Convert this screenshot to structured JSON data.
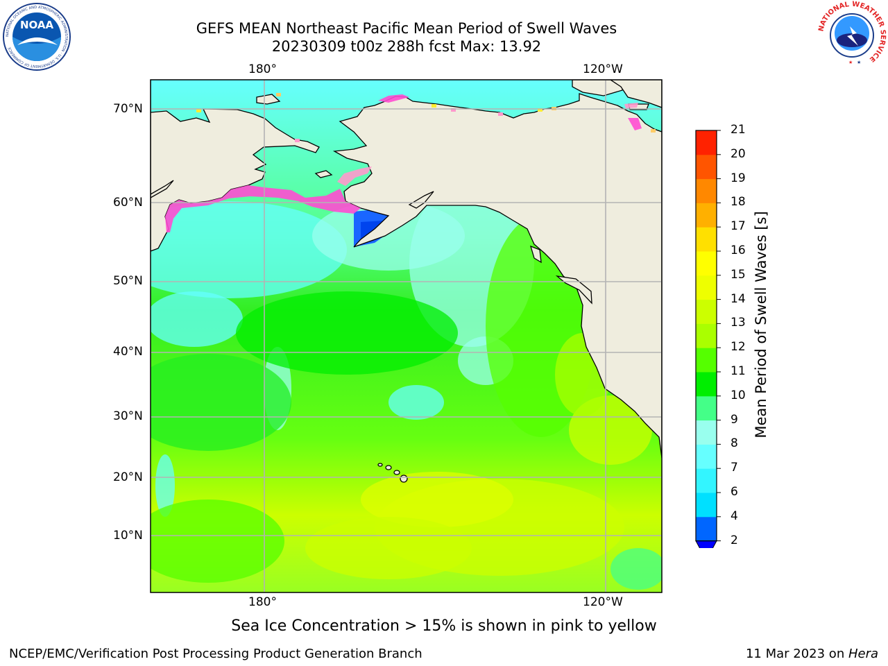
{
  "title": {
    "line1": "GEFS MEAN Northeast Pacific Mean Period of Swell Waves",
    "line2": "20230309 t00z 288h fcst   Max: 13.92"
  },
  "logos": {
    "noaa": {
      "text": "NOAA",
      "ring_text": "NATIONAL OCEANIC AND ATMOSPHERIC ADMINISTRATION · U.S. DEPARTMENT OF COMMERCE"
    },
    "nws": {
      "ring_text": "NATIONAL WEATHER SERVICE"
    }
  },
  "map": {
    "lon_labels_top": [
      "180°",
      "120°W"
    ],
    "lon_labels_bottom": [
      "180°",
      "120°W"
    ],
    "lat_labels": [
      "70°N",
      "60°N",
      "50°N",
      "40°N",
      "30°N",
      "20°N",
      "10°N"
    ],
    "colors": {
      "land": "#efedde",
      "coast": "#000000",
      "grid": "#b3b3b3",
      "ice": [
        "#ff4dd2",
        "#ff99cc",
        "#ffcc66",
        "#ffee33"
      ]
    }
  },
  "colorbar": {
    "label": "Mean Period of Swell Waves [s]",
    "ticks": [
      "2",
      "4",
      "6",
      "7",
      "8",
      "9",
      "10",
      "11",
      "12",
      "13",
      "14",
      "15",
      "16",
      "17",
      "18",
      "19",
      "20",
      "21"
    ],
    "colors": [
      "#0066ff",
      "#00e0ff",
      "#33f5ff",
      "#66ffff",
      "#99ffee",
      "#44ff88",
      "#00ee00",
      "#55ff00",
      "#aaff00",
      "#ccff00",
      "#eeff00",
      "#ffff00",
      "#ffe000",
      "#ffb000",
      "#ff8800",
      "#ff5500",
      "#ff2200"
    ],
    "under_color": "#0000ff"
  },
  "note": "Sea Ice Concentration > 15% is shown in pink to yellow",
  "footer": {
    "left": "NCEP/EMC/Verification Post Processing Product Generation Branch",
    "right_date": "11 Mar 2023 on ",
    "right_host": "Hera"
  }
}
